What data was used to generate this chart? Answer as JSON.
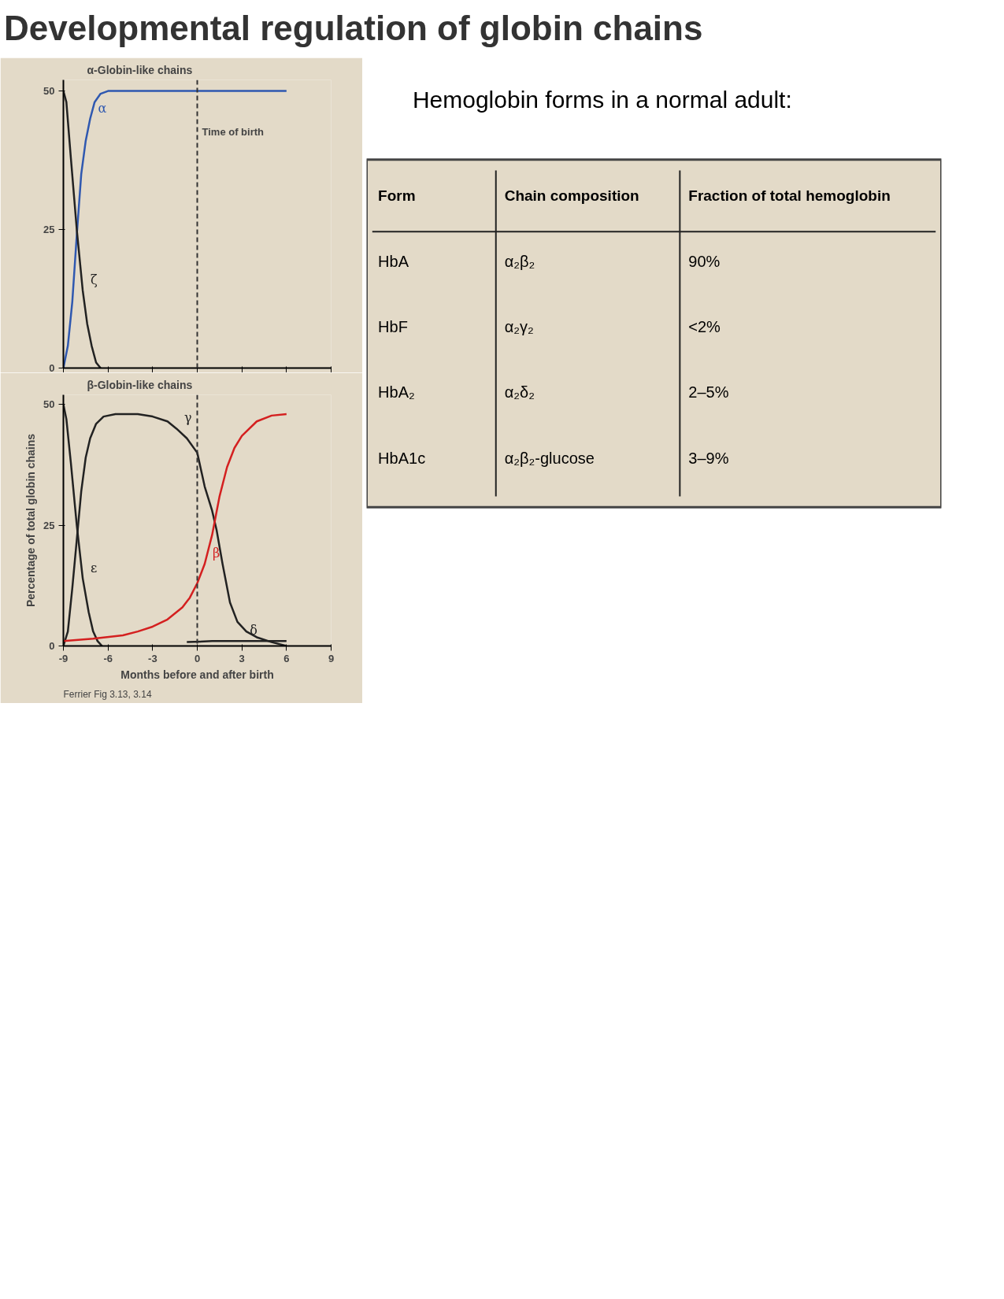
{
  "chart_data": [
    {
      "type": "line",
      "title": "Developmental regulation of globin chains",
      "subtitle": "α-Globin-like chains",
      "xlim": [
        -9,
        9
      ],
      "ylim": [
        0,
        52
      ],
      "xticks": [
        {
          "value": -9,
          "label": null
        },
        {
          "value": -6,
          "label": null
        },
        {
          "value": -3,
          "label": null
        },
        {
          "value": 0,
          "label": null
        },
        {
          "value": 3,
          "label": null
        },
        {
          "value": 6,
          "label": null
        },
        {
          "value": 9,
          "label": null
        }
      ],
      "yticks": [
        0,
        25,
        50
      ],
      "tick_labels": "y",
      "grid": false,
      "marker": "none",
      "ref_lines": [
        {
          "axis": "x",
          "value": 0,
          "label": "Time of birth",
          "line_style": "dashed",
          "color": "#333333"
        }
      ],
      "series": [
        {
          "name": "α",
          "color": "#2f58b0",
          "x": [
            -9,
            -8.7,
            -8.4,
            -8.1,
            -7.8,
            -7.5,
            -7.2,
            -6.9,
            -6.5,
            -6,
            0,
            6
          ],
          "values": [
            0,
            4,
            12,
            24,
            35,
            41,
            45,
            48,
            49.5,
            50,
            50,
            50
          ]
        },
        {
          "name": "ζ",
          "color": "#222222",
          "x": [
            -9,
            -8.8,
            -8.5,
            -8.1,
            -7.7,
            -7.4,
            -7.1,
            -6.8,
            -6.5
          ],
          "values": [
            50,
            48,
            38,
            25,
            14,
            8,
            4,
            1,
            0
          ]
        }
      ]
    },
    {
      "type": "line",
      "subtitle": "β-Globin-like chains",
      "xlabel": "Months before and after birth",
      "ylabel": "Percentage of total globin chains",
      "xlim": [
        -9,
        9
      ],
      "ylim": [
        0,
        52
      ],
      "xticks": [
        -9,
        -6,
        -3,
        0,
        3,
        6,
        9
      ],
      "yticks": [
        0,
        25,
        50
      ],
      "grid": false,
      "marker": "none",
      "annotations": [
        "Ferrier Fig 3.13, 3.14"
      ],
      "ref_lines": [
        {
          "axis": "x",
          "value": 0,
          "label": null,
          "line_style": "dashed",
          "color": "#333333"
        }
      ],
      "series": [
        {
          "name": "ε",
          "color": "#222222",
          "x": [
            -9,
            -8.8,
            -8.5,
            -8.1,
            -7.7,
            -7.3,
            -7,
            -6.7,
            -6.4
          ],
          "values": [
            50,
            47,
            38,
            25,
            14,
            7,
            3,
            1,
            0
          ]
        },
        {
          "name": "γ",
          "color": "#222222",
          "x": [
            -9,
            -8.7,
            -8.4,
            -8.1,
            -7.8,
            -7.5,
            -7.2,
            -6.8,
            -6.3,
            -5.5,
            -4,
            -3,
            -2,
            -1.4,
            -0.7,
            0,
            0.5,
            1,
            1.3,
            1.7,
            2.2,
            2.7,
            3.3,
            4,
            5,
            6
          ],
          "values": [
            0,
            3,
            12,
            22,
            32,
            39,
            43,
            46,
            47.5,
            48,
            48,
            47.5,
            46.5,
            45,
            43,
            40,
            33,
            28,
            24,
            17,
            9,
            5,
            3,
            1.8,
            0.8,
            0
          ]
        },
        {
          "name": "β",
          "color": "#d42020",
          "x": [
            -9,
            -7,
            -5,
            -4,
            -3,
            -2,
            -1,
            -0.5,
            0,
            0.5,
            1,
            1.5,
            2,
            2.5,
            3,
            4,
            5,
            6
          ],
          "values": [
            1,
            1.5,
            2.2,
            3,
            4,
            5.5,
            8,
            10,
            13,
            17,
            23,
            31,
            37,
            41,
            43.5,
            46.5,
            47.7,
            48
          ]
        },
        {
          "name": "δ",
          "color": "#222222",
          "x": [
            -0.7,
            1,
            3,
            6
          ],
          "values": [
            0.8,
            1,
            1,
            1
          ]
        }
      ]
    },
    {
      "type": "other",
      "title": "Hemoglobin forms in a normal adult:",
      "annotations": [
        "Form",
        "Chain composition",
        "Fraction of total hemoglobin",
        "HbA",
        "α₂β₂",
        "90%",
        "HbF",
        "α₂γ₂",
        "<2%",
        "HbA₂",
        "α₂δ₂",
        "2–5%",
        "HbA1c",
        "α₂β₂-glucose",
        "3–9%"
      ]
    }
  ]
}
